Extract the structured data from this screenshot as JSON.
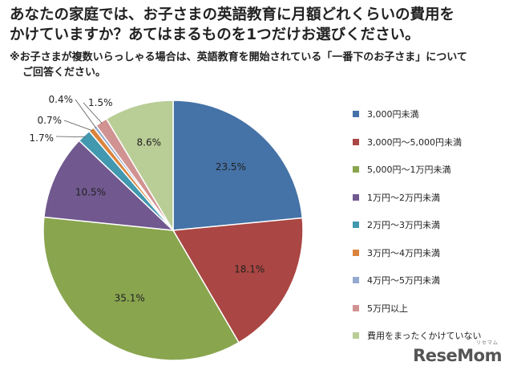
{
  "header": {
    "title_line1": "あなたの家庭では、お子さまの英語教育に月額どれくらいの費用を",
    "title_line2": "かけていますか？あてはまるものを1つだけお選びください。",
    "note_line1": "※お子さまが複数いらっしゃる場合は、英語教育を開始されている「一番下のお子さま」について",
    "note_line2": "ご回答ください。"
  },
  "chart_data": {
    "type": "pie",
    "unit": "%",
    "legend_position": "right",
    "slices": [
      {
        "label": "3,000円未満",
        "value": 23.5,
        "value_label": "23.5%",
        "color": "#4572A7"
      },
      {
        "label": "3,000円～5,000円未満",
        "value": 18.1,
        "value_label": "18.1%",
        "color": "#AA4643"
      },
      {
        "label": "5,000円～1万円未満",
        "value": 35.1,
        "value_label": "35.1%",
        "color": "#89A54E"
      },
      {
        "label": "1万円～2万円未満",
        "value": 10.5,
        "value_label": "10.5%",
        "color": "#71588F"
      },
      {
        "label": "2万円～3万円未満",
        "value": 1.7,
        "value_label": "1.7%",
        "color": "#4198AF"
      },
      {
        "label": "3万円～4万円未満",
        "value": 0.7,
        "value_label": "0.7%",
        "color": "#DB843D"
      },
      {
        "label": "4万円～5万円未満",
        "value": 0.4,
        "value_label": "0.4%",
        "color": "#93A9CF"
      },
      {
        "label": "5万円以上",
        "value": 1.5,
        "value_label": "1.5%",
        "color": "#D19392"
      },
      {
        "label": "費用をまったくかけていない",
        "value": 8.6,
        "value_label": "8.6%",
        "color": "#B9CD96"
      }
    ]
  },
  "watermark": {
    "brand": "ReseMom",
    "sub": "リセマム"
  }
}
